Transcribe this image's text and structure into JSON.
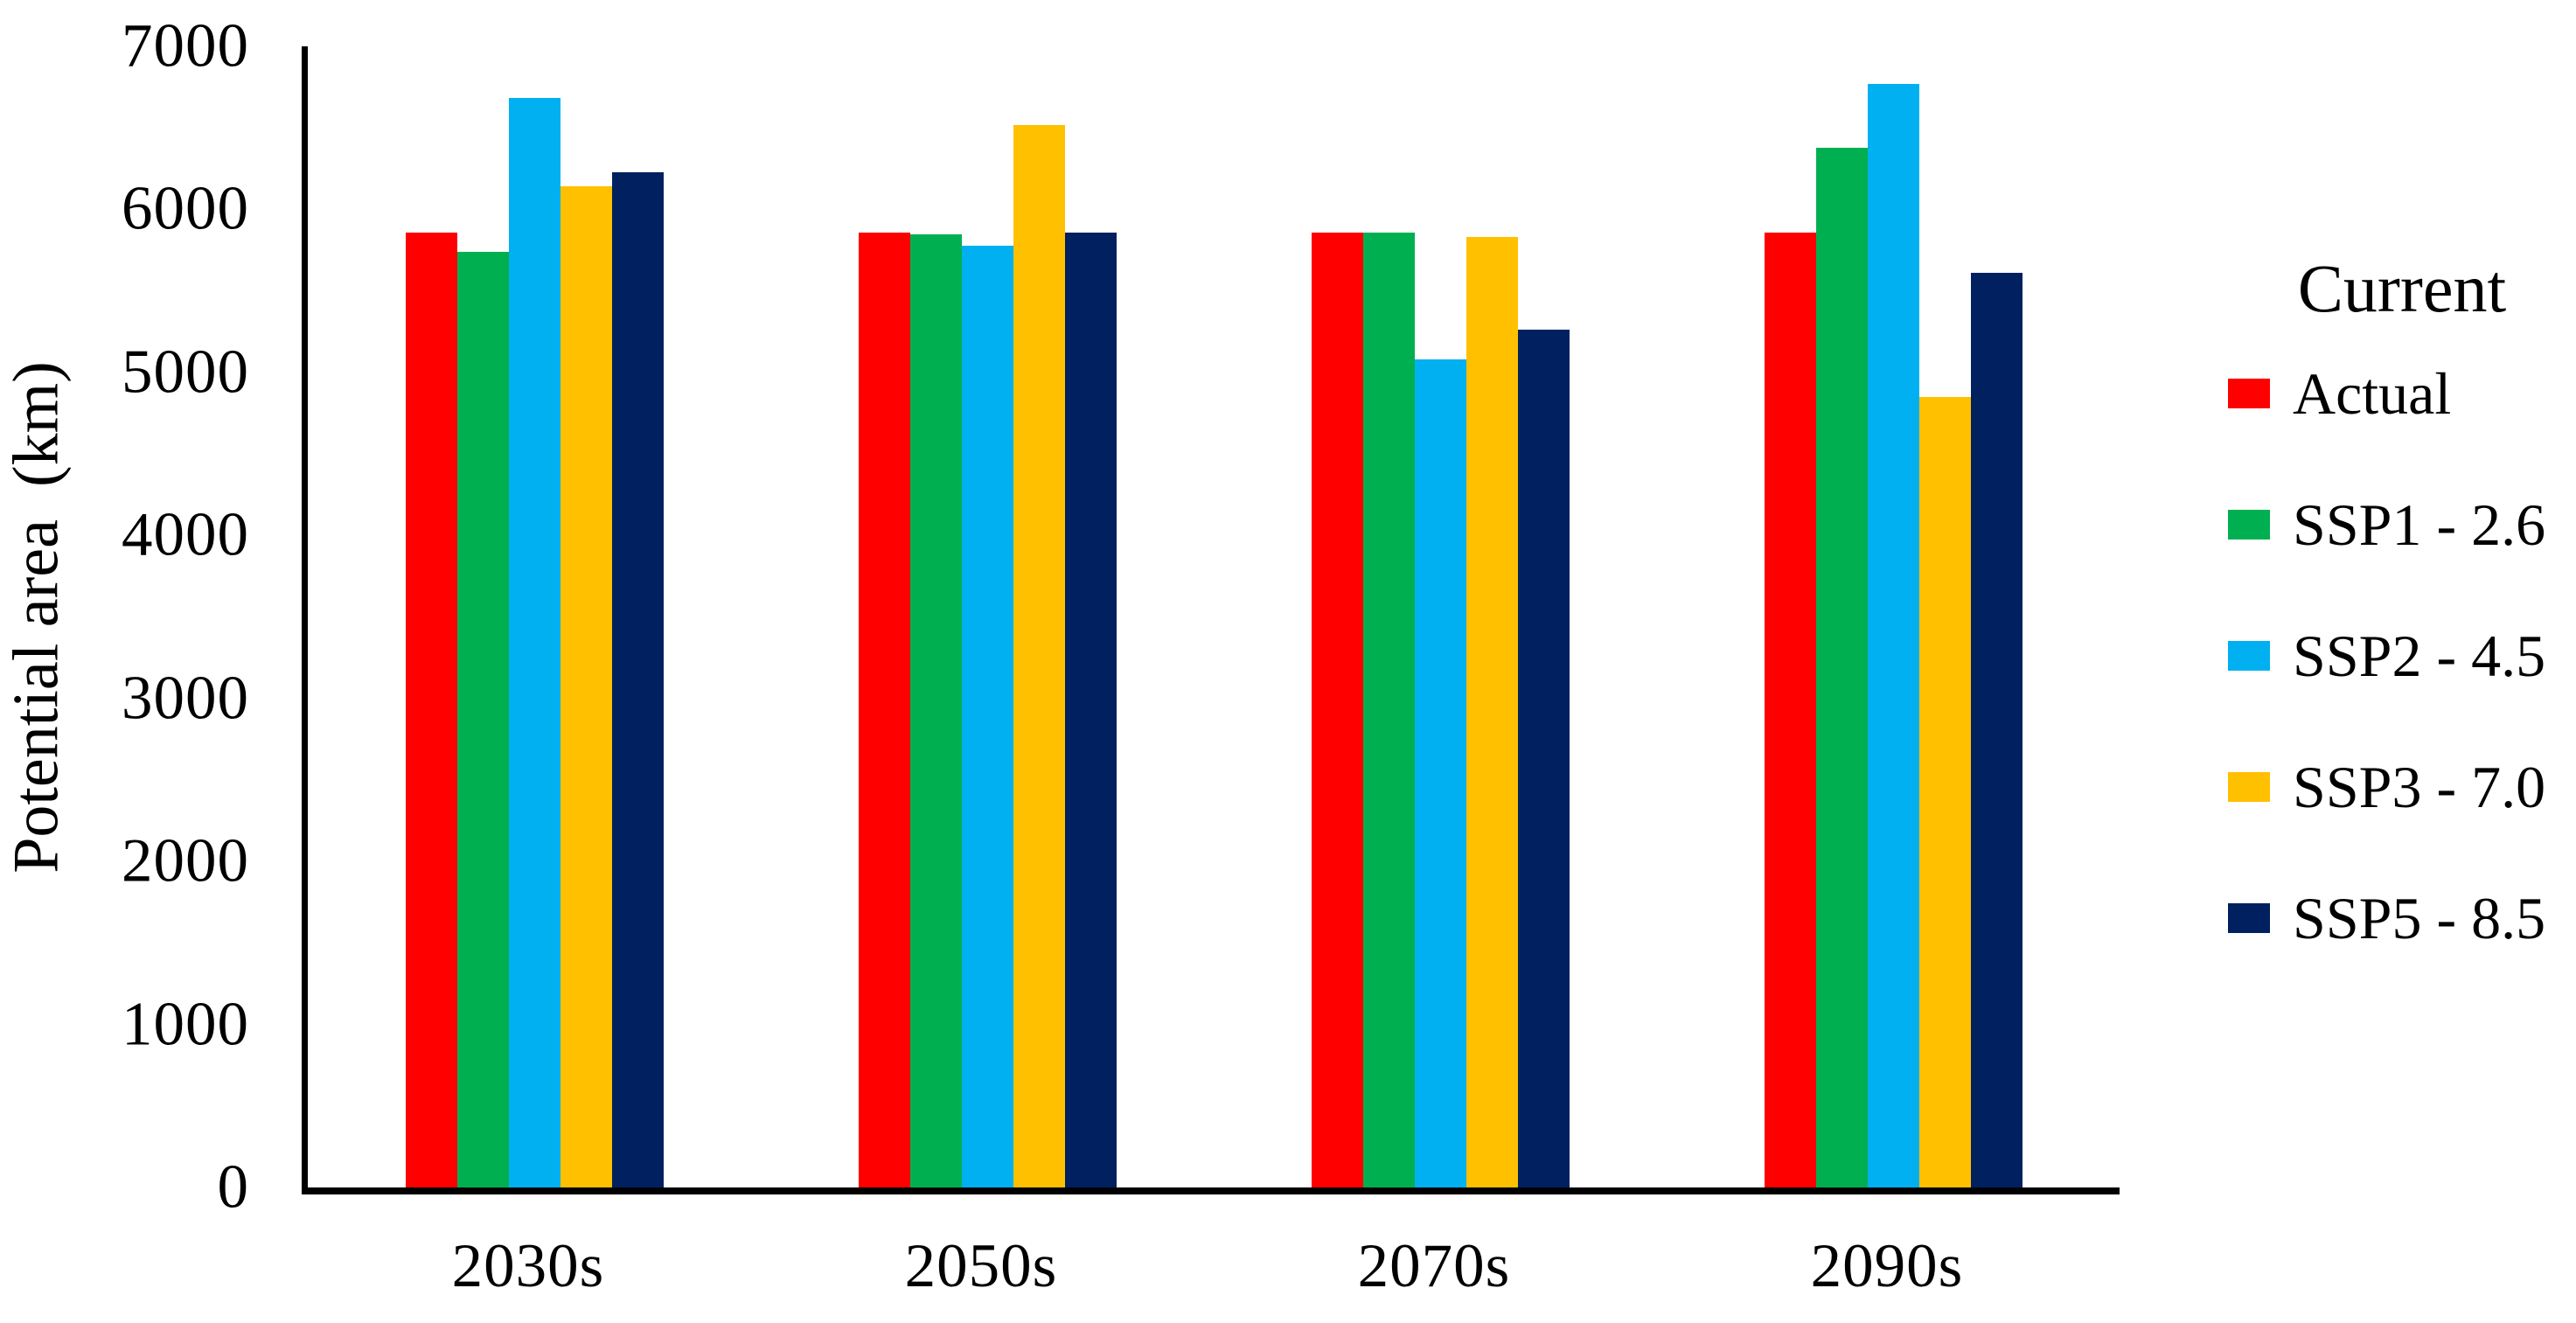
{
  "chart_data": {
    "type": "bar",
    "title": "",
    "categories": [
      "2030s",
      "2050s",
      "2070s",
      "2090s"
    ],
    "series": [
      {
        "name": "Actual",
        "color": "#FF0000",
        "values": [
          5860,
          5860,
          5860,
          5860
        ]
      },
      {
        "name": "SSP1 - 2.6",
        "color": "#00B050",
        "values": [
          5740,
          5845,
          5860,
          6380
        ]
      },
      {
        "name": "SSP2 - 4.5",
        "color": "#00B0F0",
        "values": [
          6685,
          5775,
          5080,
          6770
        ]
      },
      {
        "name": "SSP3 - 7.0",
        "color": "#FFC000",
        "values": [
          6140,
          6520,
          5830,
          4850
        ]
      },
      {
        "name": "SSP5 - 8.5",
        "color": "#002060",
        "values": [
          6230,
          5860,
          5260,
          5610
        ]
      }
    ],
    "xlabel": "",
    "ylabel": "Potential area  (km)",
    "ylim": [
      0,
      7000
    ],
    "yticks": [
      0,
      1000,
      2000,
      3000,
      4000,
      5000,
      6000,
      7000
    ],
    "grid": false,
    "legend_title": "Current",
    "legend_position": "right",
    "axis_color": "#000000",
    "background_color": "#FFFFFF"
  }
}
